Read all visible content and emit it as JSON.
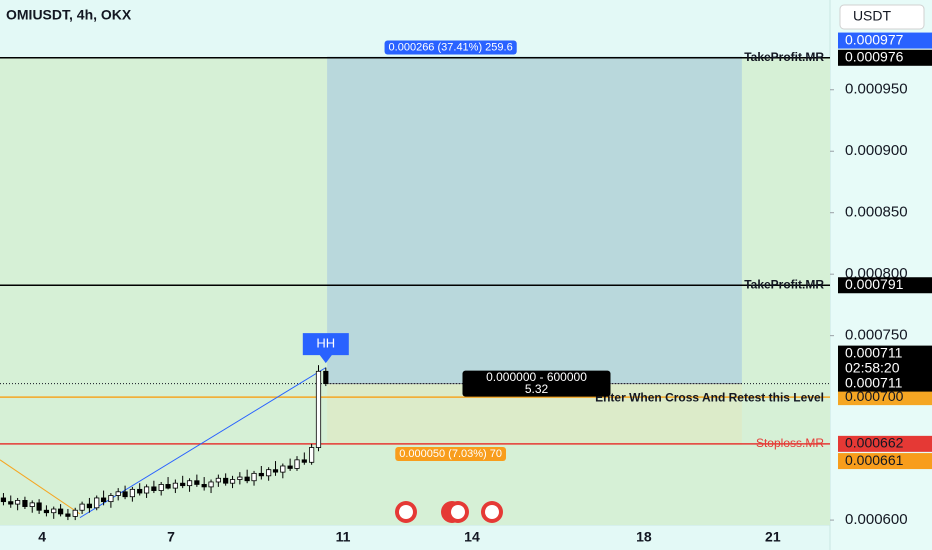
{
  "chart_data": {
    "type": "candlestick",
    "title": "OMIUSDT, 4h, OKX",
    "currency": "USDT",
    "x": [
      3.1,
      3.27,
      3.43,
      3.6,
      3.77,
      3.93,
      4.1,
      4.27,
      4.43,
      4.6,
      4.77,
      4.93,
      5.1,
      5.27,
      5.43,
      5.6,
      5.77,
      5.93,
      6.1,
      6.27,
      6.43,
      6.6,
      6.77,
      6.93,
      7.1,
      7.27,
      7.43,
      7.6,
      7.77,
      7.93,
      8.1,
      8.27,
      8.43,
      8.6,
      8.77,
      8.93,
      9.1,
      9.27,
      9.43,
      9.6,
      9.77,
      9.93,
      10.1,
      10.27,
      10.43,
      10.6
    ],
    "open": [
      0.000618,
      0.000615,
      0.000613,
      0.000616,
      0.000611,
      0.000614,
      0.000608,
      0.000606,
      0.000609,
      0.000605,
      0.000603,
      0.000608,
      0.000613,
      0.00061,
      0.000618,
      0.000615,
      0.00062,
      0.000623,
      0.000619,
      0.000625,
      0.000622,
      0.000627,
      0.000624,
      0.000629,
      0.000626,
      0.00063,
      0.000628,
      0.000632,
      0.000629,
      0.000627,
      0.000631,
      0.000634,
      0.00063,
      0.000633,
      0.000635,
      0.000632,
      0.000638,
      0.000636,
      0.000641,
      0.000639,
      0.000644,
      0.000642,
      0.000649,
      0.000647,
      0.000659,
      0.000721
    ],
    "high": [
      0.000622,
      0.00062,
      0.000618,
      0.000619,
      0.000616,
      0.000617,
      0.000612,
      0.000611,
      0.000613,
      0.000609,
      0.00061,
      0.000615,
      0.000618,
      0.00062,
      0.000624,
      0.000622,
      0.000626,
      0.000628,
      0.000627,
      0.00063,
      0.000629,
      0.000632,
      0.000631,
      0.000635,
      0.000633,
      0.000636,
      0.000634,
      0.000637,
      0.000635,
      0.000633,
      0.000637,
      0.000638,
      0.000636,
      0.000639,
      0.000641,
      0.00064,
      0.000644,
      0.000643,
      0.000648,
      0.000646,
      0.00065,
      0.000652,
      0.000655,
      0.000662,
      0.000726,
      0.000724
    ],
    "low": [
      0.000612,
      0.00061,
      0.000608,
      0.000609,
      0.000606,
      0.000605,
      0.000603,
      0.000601,
      0.000603,
      0.0006,
      0.0006,
      0.000605,
      0.000606,
      0.000608,
      0.000612,
      0.00061,
      0.000616,
      0.000617,
      0.000615,
      0.00062,
      0.000618,
      0.000622,
      0.00062,
      0.000625,
      0.000622,
      0.000626,
      0.000623,
      0.000627,
      0.000624,
      0.000622,
      0.000627,
      0.000628,
      0.000626,
      0.000629,
      0.00063,
      0.000628,
      0.000633,
      0.000632,
      0.000636,
      0.000634,
      0.00064,
      0.00064,
      0.000645,
      0.000645,
      0.000656,
      0.000709
    ],
    "close": [
      0.000615,
      0.000613,
      0.000616,
      0.000611,
      0.000614,
      0.000608,
      0.000606,
      0.000609,
      0.000605,
      0.000603,
      0.000608,
      0.000613,
      0.00061,
      0.000618,
      0.000615,
      0.00062,
      0.000623,
      0.000619,
      0.000625,
      0.000622,
      0.000627,
      0.000624,
      0.000629,
      0.000626,
      0.00063,
      0.000628,
      0.000632,
      0.000629,
      0.000627,
      0.000631,
      0.000634,
      0.00063,
      0.000633,
      0.000635,
      0.000632,
      0.000638,
      0.000636,
      0.000641,
      0.000639,
      0.000644,
      0.000642,
      0.000649,
      0.000647,
      0.000659,
      0.000721,
      0.000711
    ],
    "up_color": "#ffffff",
    "down_color": "#000000",
    "xlim": [
      3.02,
      22.33
    ],
    "xticks": [
      4,
      7,
      11,
      14,
      18,
      21
    ],
    "ylim": [
      0.000596,
      0.001023
    ],
    "yticks": [
      {
        "value": 0.0006,
        "label": "0.000600"
      },
      {
        "value": 0.00075,
        "label": "0.000750"
      },
      {
        "value": 0.0008,
        "label": "0.000800"
      },
      {
        "value": 0.00085,
        "label": "0.000850"
      },
      {
        "value": 0.0009,
        "label": "0.000900"
      },
      {
        "value": 0.00095,
        "label": "0.000950"
      }
    ],
    "levels": [
      {
        "label": "TakeProfit.MR",
        "value": 0.000976,
        "value_label": "0.000976",
        "color": "#000000"
      },
      {
        "label": "TakeProfit.MR",
        "value": 0.000791,
        "value_label": "0.000791",
        "color": "#000000"
      },
      {
        "label": "Enter When Cross And Retest this Level",
        "value": 0.0007,
        "value_label": "0.000700",
        "color": "#f5a623"
      },
      {
        "label": "Stoploss.MR",
        "value": 0.000662,
        "value_label": "0.000662",
        "color": "#e53935"
      }
    ],
    "last_price": {
      "value": 0.000711,
      "label": "0.000711",
      "countdown": "02:58:20"
    },
    "position": {
      "entry": 0.000711,
      "entry_label": "0.000711",
      "target": 0.000977,
      "target_label": "0.000977",
      "stop": 0.000661,
      "stop_label": "0.000661",
      "x_start": 10.63,
      "x_end": 20.28,
      "target_text": "0.000266 (37.41%) 259.6",
      "stop_text": "0.000050 (7.03%) 70",
      "info_text": [
        "0.000000 - 600000",
        "5.32"
      ]
    },
    "annotation": {
      "text": "HH",
      "x": 10.6,
      "y": 0.000726
    },
    "trendlines": [
      {
        "x": [
          4.88,
          10.6
        ],
        "y": [
          0.000602,
          0.000724
        ],
        "color": "#2962ff"
      },
      {
        "x": [
          3.02,
          4.88
        ],
        "y": [
          0.000649,
          0.000605
        ],
        "color": "#f5a623"
      }
    ]
  }
}
